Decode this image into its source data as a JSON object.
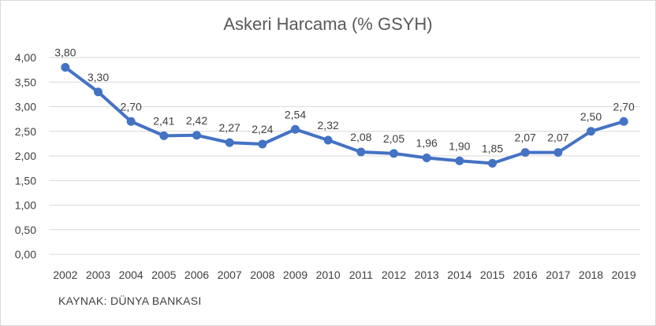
{
  "chart_data": {
    "type": "line",
    "title": "Askeri Harcama (% GSYH)",
    "xlabel": "",
    "ylabel": "",
    "x": [
      "2002",
      "2003",
      "2004",
      "2005",
      "2006",
      "2007",
      "2008",
      "2009",
      "2010",
      "2011",
      "2012",
      "2013",
      "2014",
      "2015",
      "2016",
      "2017",
      "2018",
      "2019"
    ],
    "values": [
      3.8,
      3.3,
      2.7,
      2.41,
      2.42,
      2.27,
      2.24,
      2.54,
      2.32,
      2.08,
      2.05,
      1.96,
      1.9,
      1.85,
      2.07,
      2.07,
      2.5,
      2.7
    ],
    "data_labels": [
      "3,80",
      "3,30",
      "2,70",
      "2,41",
      "2,42",
      "2,27",
      "2,24",
      "2,54",
      "2,32",
      "2,08",
      "2,05",
      "1,96",
      "1,90",
      "1,85",
      "2,07",
      "2,07",
      "2,50",
      "2,70"
    ],
    "y_ticks": [
      "0,00",
      "0,50",
      "1,00",
      "1,50",
      "2,00",
      "2,50",
      "3,00",
      "3,50",
      "4,00"
    ],
    "ylim": [
      0,
      4
    ],
    "grid": true,
    "legend": "none",
    "line_color": "#4472c4",
    "grid_color": "#d9d9d9"
  },
  "source_note": "KAYNAK: DÜNYA BANKASI"
}
